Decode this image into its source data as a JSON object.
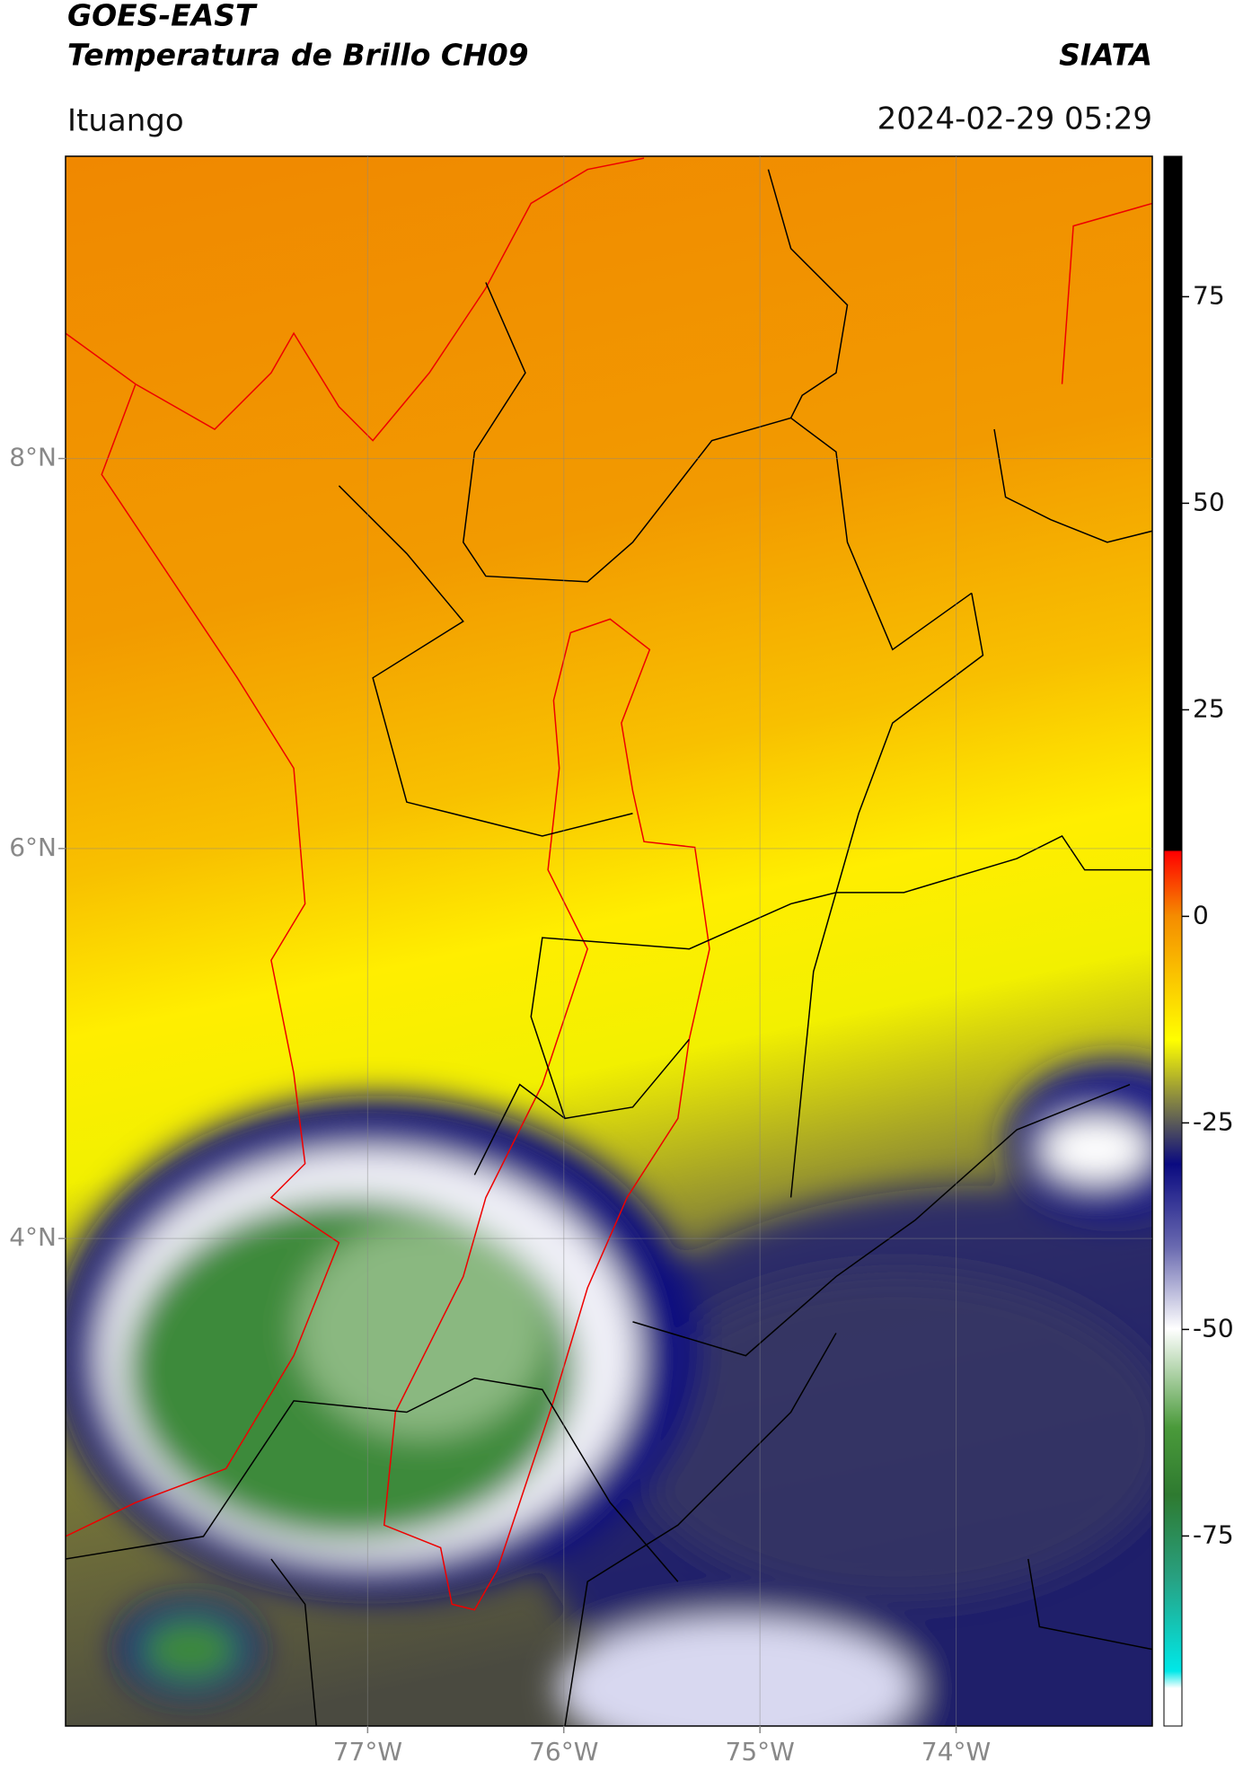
{
  "header": {
    "title": "GOES-EAST",
    "subtitle": "Temperatura de Brillo CH09",
    "source": "SIATA",
    "location": "Ituango",
    "datetime": "2024-02-29 05:29"
  },
  "map": {
    "xlim": [
      -78.54,
      -73.0
    ],
    "ylim": [
      1.5,
      9.55
    ],
    "xticks": [
      {
        "value": -77,
        "label": "77°W"
      },
      {
        "value": -76,
        "label": "76°W"
      },
      {
        "value": -75,
        "label": "75°W"
      },
      {
        "value": -74,
        "label": "74°W"
      }
    ],
    "yticks": [
      {
        "value": 4,
        "label": "4°N"
      },
      {
        "value": 6,
        "label": "6°N"
      },
      {
        "value": 8,
        "label": "8°N"
      }
    ],
    "grid": true
  },
  "colorbar": {
    "lim": [
      -98,
      92
    ],
    "ticks": [
      -75,
      -50,
      -25,
      0,
      25,
      50,
      75
    ]
  }
}
